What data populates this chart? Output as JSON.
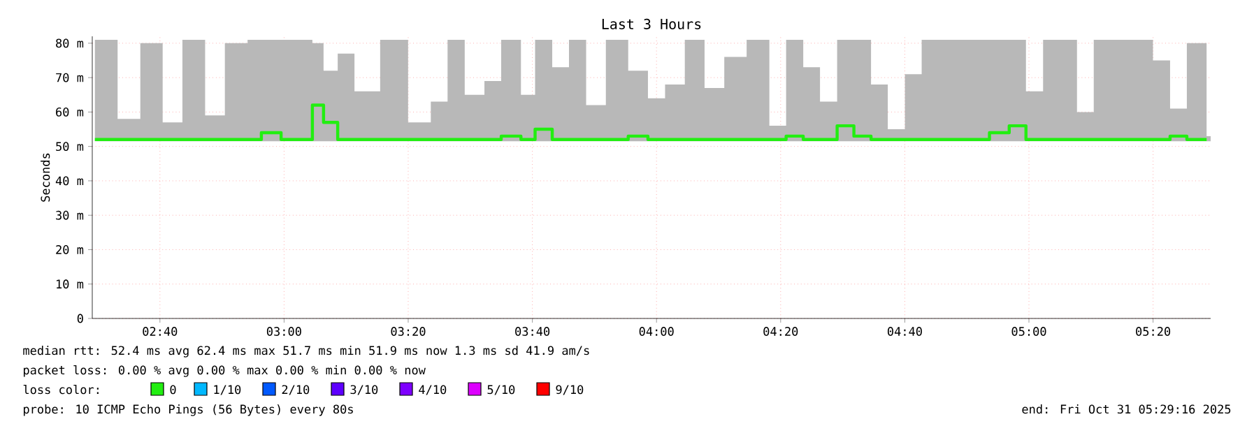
{
  "chart_data": {
    "type": "step",
    "title": "Last 3 Hours",
    "ylabel": "Seconds",
    "legend_title": "loss color:",
    "legend": "bottom",
    "grid": true,
    "xlim": [
      2.485,
      5.488
    ],
    "xticks": [
      {
        "value": 2.6667,
        "label": "02:40"
      },
      {
        "value": 3,
        "label": "03:00"
      },
      {
        "value": 3.3333,
        "label": "03:20"
      },
      {
        "value": 3.6667,
        "label": "03:40"
      },
      {
        "value": 4,
        "label": "04:00"
      },
      {
        "value": 4.3333,
        "label": "04:20"
      },
      {
        "value": 4.6667,
        "label": "04:40"
      },
      {
        "value": 5,
        "label": "05:00"
      },
      {
        "value": 5.3333,
        "label": "05:20"
      }
    ],
    "ylim": [
      0,
      82
    ],
    "yticks": [
      0,
      {
        "value": 10,
        "label": "10 m"
      },
      {
        "value": 20,
        "label": "20 m"
      },
      {
        "value": 30,
        "label": "30 m"
      },
      {
        "value": 40,
        "label": "40 m"
      },
      {
        "value": 50,
        "label": "50 m"
      },
      {
        "value": 60,
        "label": "60 m"
      },
      {
        "value": 70,
        "label": "70 m"
      },
      {
        "value": 80,
        "label": "80 m"
      }
    ],
    "x": [
      2.492,
      2.553,
      2.614,
      2.674,
      2.727,
      2.788,
      2.841,
      2.902,
      2.939,
      2.992,
      3.038,
      3.076,
      3.106,
      3.144,
      3.189,
      3.258,
      3.333,
      3.394,
      3.439,
      3.485,
      3.538,
      3.583,
      3.636,
      3.674,
      3.72,
      3.765,
      3.811,
      3.864,
      3.924,
      3.977,
      4.023,
      4.076,
      4.129,
      4.182,
      4.242,
      4.303,
      4.348,
      4.394,
      4.439,
      4.485,
      4.53,
      4.576,
      4.621,
      4.667,
      4.712,
      4.773,
      4.833,
      4.894,
      4.947,
      4.992,
      5.038,
      5.083,
      5.129,
      5.174,
      5.227,
      5.28,
      5.333,
      5.379,
      5.424,
      5.477
    ],
    "series": [
      {
        "name": "0",
        "color": "#22ee11",
        "values": [
          52,
          52,
          52,
          52,
          52,
          52,
          52,
          52,
          54,
          52,
          52,
          62,
          57,
          52,
          52,
          52,
          52,
          52,
          52,
          52,
          52,
          53,
          52,
          55,
          52,
          52,
          52,
          52,
          53,
          52,
          52,
          52,
          52,
          52,
          52,
          52,
          53,
          52,
          52,
          56,
          53,
          52,
          52,
          52,
          52,
          52,
          52,
          54,
          56,
          52,
          52,
          52,
          52,
          52,
          52,
          52,
          52,
          53,
          52,
          52
        ],
        "lower": [
          51.5,
          51.5,
          51.5,
          51.5,
          51.5,
          51.5,
          51.5,
          51.5,
          51.5,
          51.5,
          51.5,
          51.5,
          51.5,
          51.5,
          51.5,
          51.5,
          51.5,
          51.5,
          51.5,
          51.5,
          51.5,
          51.5,
          51.5,
          51.5,
          51.5,
          51.5,
          51.5,
          51.5,
          51.5,
          51.5,
          51.5,
          51.5,
          51.5,
          51.5,
          51.5,
          51.5,
          51.5,
          51.5,
          51.5,
          51.5,
          51.5,
          51.5,
          51.5,
          51.5,
          51.5,
          51.5,
          51.5,
          51.5,
          51.5,
          51.5,
          51.5,
          51.5,
          51.5,
          51.5,
          51.5,
          51.5,
          51.5,
          51.5,
          51.5,
          51.5
        ],
        "upper": [
          81,
          58,
          80,
          57,
          81,
          59,
          80,
          81,
          81,
          81,
          81,
          80,
          72,
          77,
          66,
          81,
          57,
          63,
          81,
          65,
          69,
          81,
          65,
          81,
          73,
          81,
          62,
          81,
          72,
          64,
          68,
          81,
          67,
          76,
          81,
          56,
          81,
          73,
          63,
          81,
          81,
          68,
          55,
          71,
          81,
          81,
          81,
          81,
          81,
          66,
          81,
          81,
          60,
          81,
          81,
          81,
          75,
          61,
          80,
          53
        ]
      },
      {
        "name": "1/10",
        "color": "#00b8ff",
        "values": [
          null,
          null,
          null,
          null,
          null,
          null,
          null,
          null,
          null,
          null,
          null,
          null,
          null,
          null,
          null,
          null,
          null,
          null,
          null,
          null,
          null,
          null,
          null,
          null,
          null,
          null,
          null,
          null,
          null,
          null,
          null,
          null,
          null,
          null,
          null,
          null,
          null,
          null,
          null,
          null,
          null,
          null,
          null,
          null,
          null,
          null,
          null,
          null,
          null,
          null,
          null,
          null,
          null,
          null,
          null,
          null,
          null,
          null,
          null,
          null
        ]
      },
      {
        "name": "2/10",
        "color": "#0059ff",
        "values": [
          null,
          null,
          null,
          null,
          null,
          null,
          null,
          null,
          null,
          null,
          null,
          null,
          null,
          null,
          null,
          null,
          null,
          null,
          null,
          null,
          null,
          null,
          null,
          null,
          null,
          null,
          null,
          null,
          null,
          null,
          null,
          null,
          null,
          null,
          null,
          null,
          null,
          null,
          null,
          null,
          null,
          null,
          null,
          null,
          null,
          null,
          null,
          null,
          null,
          null,
          null,
          null,
          null,
          null,
          null,
          null,
          null,
          null,
          null,
          null
        ]
      },
      {
        "name": "3/10",
        "color": "#5e00ff",
        "values": [
          null,
          null,
          null,
          null,
          null,
          null,
          null,
          null,
          null,
          null,
          null,
          null,
          null,
          null,
          null,
          null,
          null,
          null,
          null,
          null,
          null,
          null,
          null,
          null,
          null,
          null,
          null,
          null,
          null,
          null,
          null,
          null,
          null,
          null,
          null,
          null,
          null,
          null,
          null,
          null,
          null,
          null,
          null,
          null,
          null,
          null,
          null,
          null,
          null,
          null,
          null,
          null,
          null,
          null,
          null,
          null,
          null,
          null,
          null,
          null
        ]
      },
      {
        "name": "4/10",
        "color": "#7e00ff",
        "values": [
          null,
          null,
          null,
          null,
          null,
          null,
          null,
          null,
          null,
          null,
          null,
          null,
          null,
          null,
          null,
          null,
          null,
          null,
          null,
          null,
          null,
          null,
          null,
          null,
          null,
          null,
          null,
          null,
          null,
          null,
          null,
          null,
          null,
          null,
          null,
          null,
          null,
          null,
          null,
          null,
          null,
          null,
          null,
          null,
          null,
          null,
          null,
          null,
          null,
          null,
          null,
          null,
          null,
          null,
          null,
          null,
          null,
          null,
          null,
          null
        ]
      },
      {
        "name": "5/10",
        "color": "#dd00ff",
        "values": [
          null,
          null,
          null,
          null,
          null,
          null,
          null,
          null,
          null,
          null,
          null,
          null,
          null,
          null,
          null,
          null,
          null,
          null,
          null,
          null,
          null,
          null,
          null,
          null,
          null,
          null,
          null,
          null,
          null,
          null,
          null,
          null,
          null,
          null,
          null,
          null,
          null,
          null,
          null,
          null,
          null,
          null,
          null,
          null,
          null,
          null,
          null,
          null,
          null,
          null,
          null,
          null,
          null,
          null,
          null,
          null,
          null,
          null,
          null,
          null
        ]
      },
      {
        "name": "9/10",
        "color": "#ff0000",
        "values": [
          null,
          null,
          null,
          null,
          null,
          null,
          null,
          null,
          null,
          null,
          null,
          null,
          null,
          null,
          null,
          null,
          null,
          null,
          null,
          null,
          null,
          null,
          null,
          null,
          null,
          null,
          null,
          null,
          null,
          null,
          null,
          null,
          null,
          null,
          null,
          null,
          null,
          null,
          null,
          null,
          null,
          null,
          null,
          null,
          null,
          null,
          null,
          null,
          null,
          null,
          null,
          null,
          null,
          null,
          null,
          null,
          null,
          null,
          null,
          null
        ]
      }
    ],
    "annotations": [
      "median rtt:  52.4 ms avg  62.4 ms max  51.7 ms min  51.9 ms now  1.3 ms sd  41.9   am/s",
      "packet loss: 0.00 % avg  0.00 % max  0.00 % min  0.00 % now",
      "probe:       10 ICMP Echo Pings (56 Bytes) every 80s",
      "end: Fri Oct 31 05:29:16 2025"
    ]
  }
}
